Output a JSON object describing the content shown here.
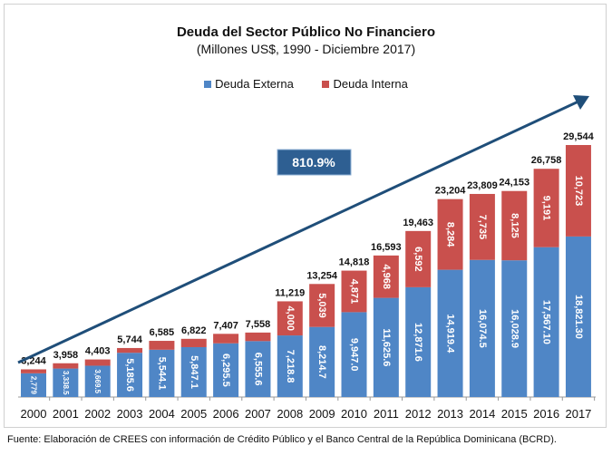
{
  "chart_data": {
    "type": "bar",
    "stacked": true,
    "title": "Deuda del Sector Público No Financiero",
    "subtitle": "(Millones US$, 1990 - Diciembre 2017)",
    "categories": [
      "2000",
      "2001",
      "2002",
      "2003",
      "2004",
      "2005",
      "2006",
      "2007",
      "2008",
      "2009",
      "2010",
      "2011",
      "2012",
      "2013",
      "2014",
      "2015",
      "2016",
      "2017"
    ],
    "series": [
      {
        "name": "Deuda Externa",
        "color": "#4f86c6",
        "values": [
          2779,
          3338.5,
          3669.5,
          5185.6,
          5544.1,
          5847.1,
          6295.5,
          6555.6,
          7218.8,
          8214.7,
          9947.0,
          11625.6,
          12871.6,
          14919.4,
          16074.5,
          16028.9,
          17567.1,
          18821.3
        ],
        "labels": [
          "2,779",
          "3,338.5",
          "3,669.5",
          "5,185.6",
          "5,544.1",
          "5,847.1",
          "6,295.5",
          "6,555.6",
          "7,218.8",
          "8,214.7",
          "9,947.0",
          "11,625.6",
          "12,871.6",
          "14,919.4",
          "16,074.5",
          "16,028.9",
          "17,567.10",
          "18,821.30"
        ]
      },
      {
        "name": "Deuda Interna",
        "color": "#c9504d",
        "values": [
          465,
          619.5,
          733.5,
          558.4,
          1040.9,
          974.9,
          1111.5,
          1002.4,
          4000,
          5039,
          4871,
          4968,
          6592,
          8284,
          7735,
          8125,
          9191,
          10723
        ],
        "labels": [
          "",
          "",
          "",
          "",
          "",
          "",
          "",
          "",
          "4,000",
          "5,039",
          "4,871",
          "4,968",
          "6,592",
          "8,284",
          "7,735",
          "8,125",
          "9,191",
          "10,723"
        ]
      }
    ],
    "totals": [
      "3,244",
      "3,958",
      "4,403",
      "5,744",
      "6,585",
      "6,822",
      "7,407",
      "7,558",
      "11,219",
      "13,254",
      "14,818",
      "16,593",
      "19,463",
      "23,204",
      "23,809",
      "24,153",
      "26,758",
      "29,544"
    ],
    "total_values": [
      3244,
      3958,
      4403,
      5744,
      6585,
      6822,
      7407,
      7558,
      11219,
      13254,
      14818,
      16593,
      19463,
      23204,
      23809,
      24153,
      26758,
      29544
    ],
    "annotation": "810.9%",
    "annotation_color": "#2e5f92",
    "trend_arrow_color": "#1f4e79",
    "legend_position": "top",
    "grid": false,
    "ylim": [
      0,
      29544
    ]
  },
  "source": "Fuente: Elaboración de CREES con información de Crédito Público y el Banco Central de la República  Dominicana (BCRD)."
}
